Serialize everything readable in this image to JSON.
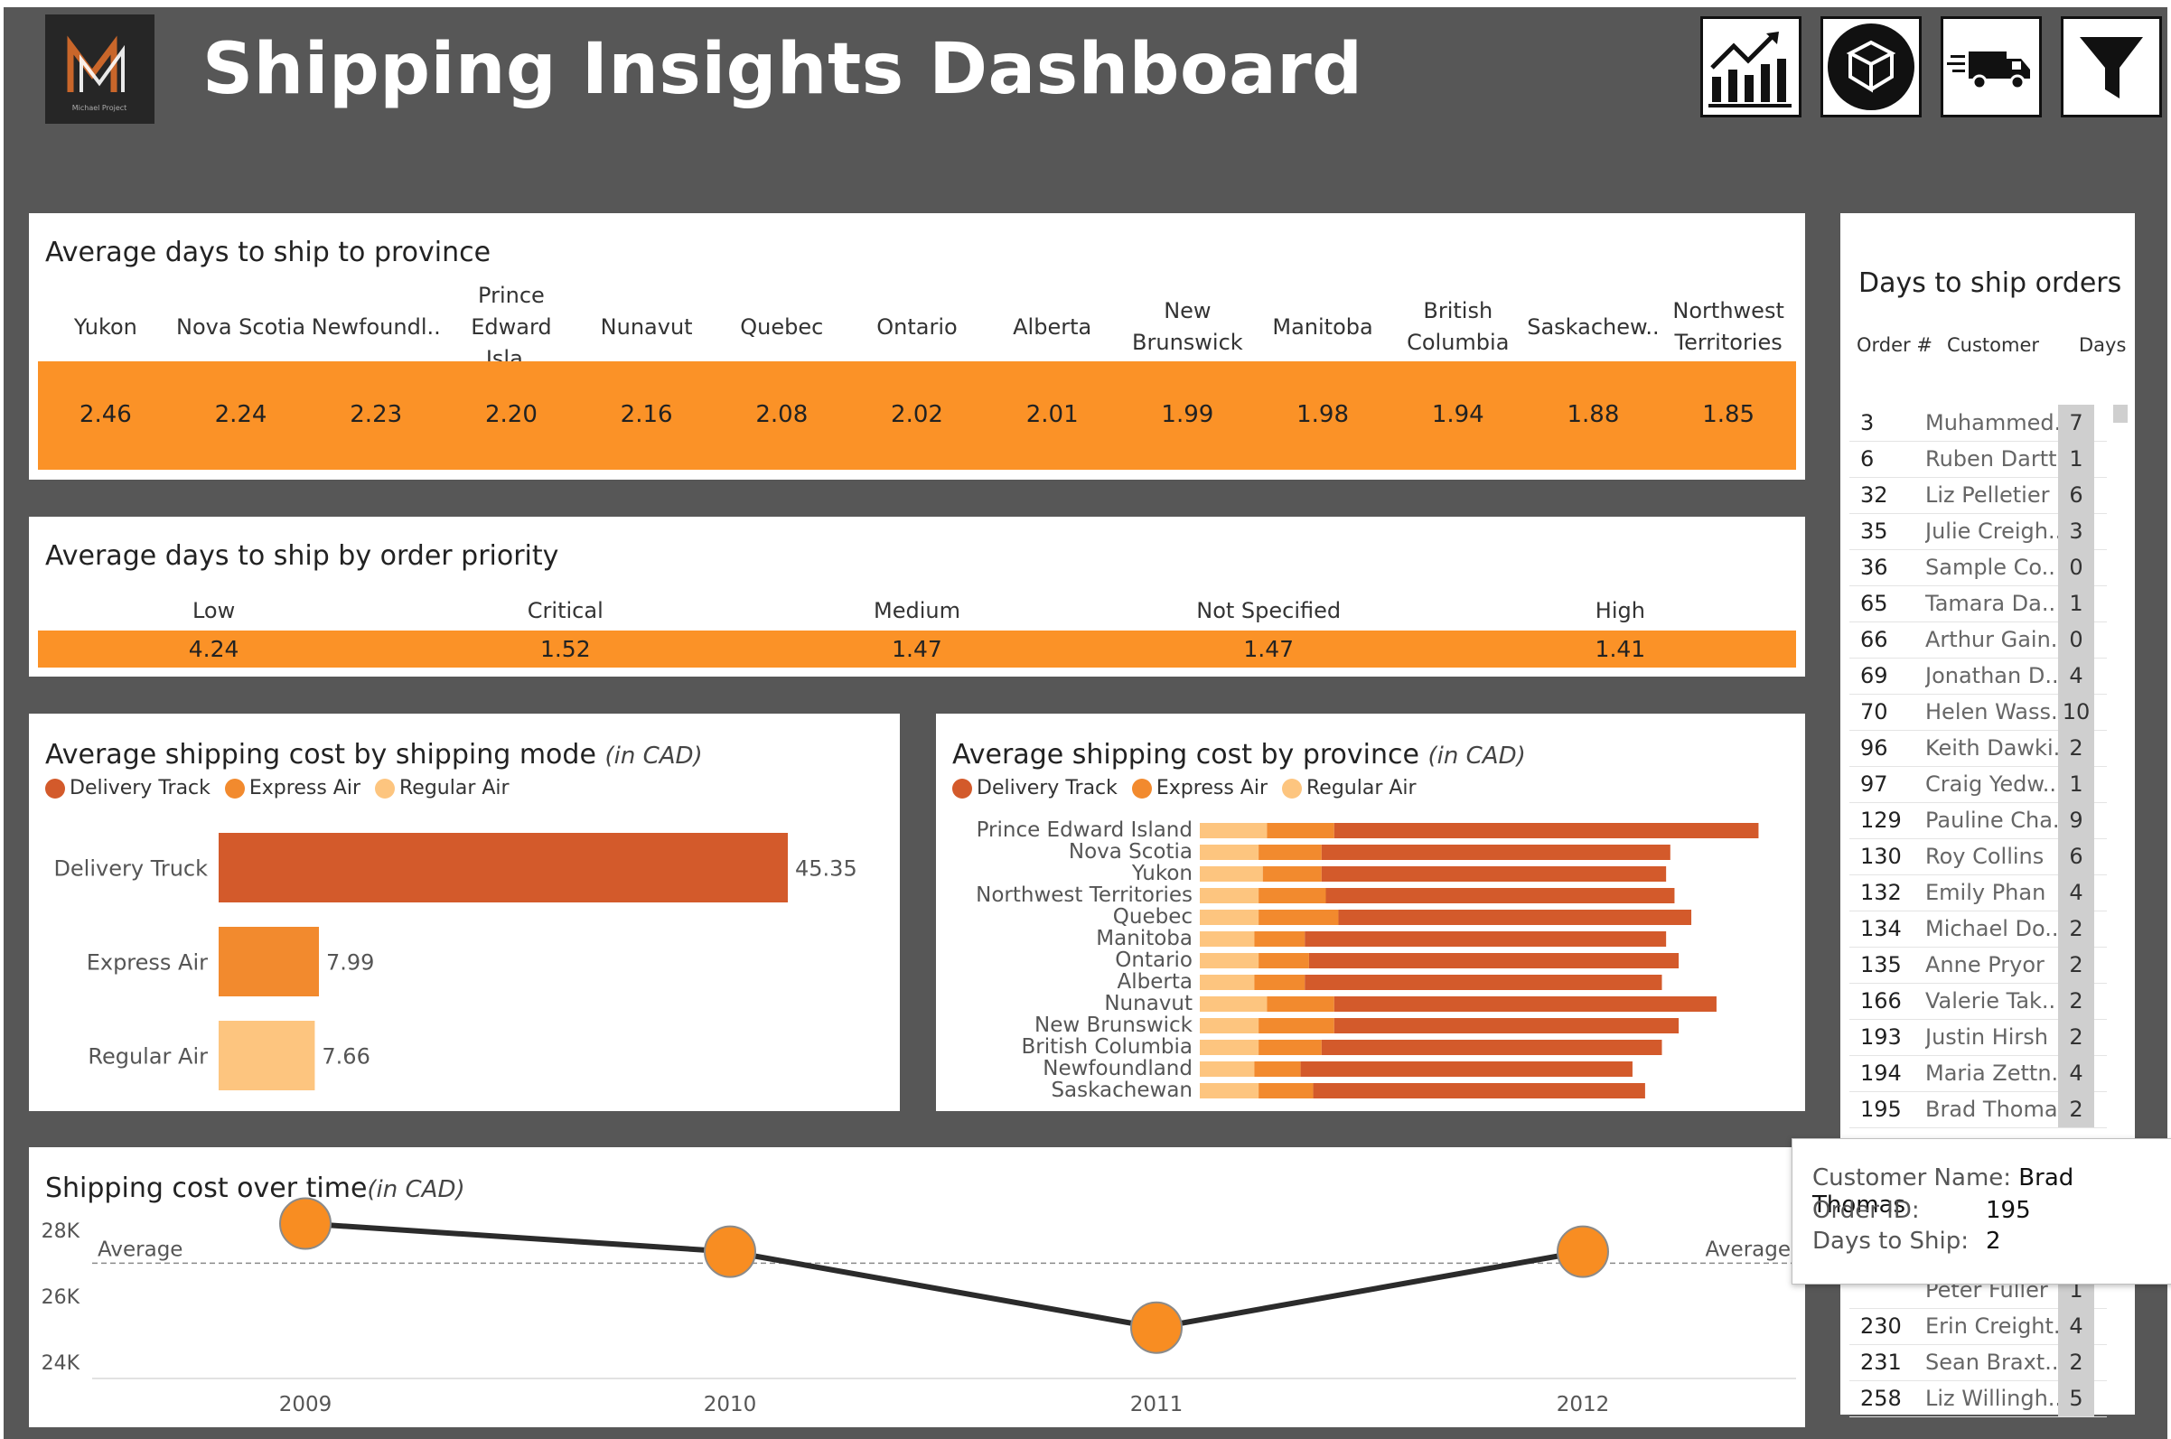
{
  "header": {
    "title": "Shipping Insights Dashboard",
    "logo_caption": "Michael Project",
    "nav_icons": [
      "line-chart-icon",
      "package-icon",
      "delivery-truck-icon",
      "filter-icon"
    ]
  },
  "province_days": {
    "title": "Average days to ship to province",
    "provinces": [
      {
        "line1": "",
        "line2": "Yukon",
        "value": "2.46"
      },
      {
        "line1": "",
        "line2": "Nova Scotia",
        "value": "2.24"
      },
      {
        "line1": "",
        "line2": "Newfoundl..",
        "value": "2.23"
      },
      {
        "line1": "Prince",
        "line2": "Edward Isla..",
        "value": "2.20"
      },
      {
        "line1": "",
        "line2": "Nunavut",
        "value": "2.16"
      },
      {
        "line1": "",
        "line2": "Quebec",
        "value": "2.08"
      },
      {
        "line1": "",
        "line2": "Ontario",
        "value": "2.02"
      },
      {
        "line1": "",
        "line2": "Alberta",
        "value": "2.01"
      },
      {
        "line1": "New",
        "line2": "Brunswick",
        "value": "1.99"
      },
      {
        "line1": "",
        "line2": "Manitoba",
        "value": "1.98"
      },
      {
        "line1": "British",
        "line2": "Columbia",
        "value": "1.94"
      },
      {
        "line1": "",
        "line2": "Saskachew..",
        "value": "1.88"
      },
      {
        "line1": "Northwest",
        "line2": "Territories",
        "value": "1.85"
      }
    ]
  },
  "priority_days": {
    "title": "Average days to ship by order priority",
    "priorities": [
      {
        "label": "Low",
        "value": "4.24"
      },
      {
        "label": "Critical",
        "value": "1.52"
      },
      {
        "label": "Medium",
        "value": "1.47"
      },
      {
        "label": "Not Specified",
        "value": "1.47"
      },
      {
        "label": "High",
        "value": "1.41"
      }
    ]
  },
  "legend": [
    {
      "label": "Delivery Track",
      "color": "#d35a2b"
    },
    {
      "label": "Express Air",
      "color": "#f28a2e"
    },
    {
      "label": "Regular Air",
      "color": "#fdc57f"
    }
  ],
  "mode_cost": {
    "title": "Average shipping cost by shipping mode",
    "unit": "(in CAD)"
  },
  "province_cost": {
    "title": "Average shipping cost by province",
    "unit": "(in CAD)"
  },
  "time_cost": {
    "title": "Shipping cost over time",
    "unit": "(in CAD)",
    "average_label": "Average"
  },
  "orders": {
    "title": "Days to ship orders",
    "col_order": "Order #",
    "col_customer": "Customer",
    "col_days": "Days",
    "rows": [
      {
        "order": "3",
        "customer": "Muhammed..",
        "days": "7"
      },
      {
        "order": "6",
        "customer": "Ruben Dartt",
        "days": "1"
      },
      {
        "order": "32",
        "customer": "Liz Pelletier",
        "days": "6"
      },
      {
        "order": "35",
        "customer": "Julie Creigh..",
        "days": "3"
      },
      {
        "order": "36",
        "customer": "Sample Co..",
        "days": "0"
      },
      {
        "order": "65",
        "customer": "Tamara Da..",
        "days": "1"
      },
      {
        "order": "66",
        "customer": "Arthur Gain..",
        "days": "0"
      },
      {
        "order": "69",
        "customer": "Jonathan D..",
        "days": "4"
      },
      {
        "order": "70",
        "customer": "Helen Wass..",
        "days": "10"
      },
      {
        "order": "96",
        "customer": "Keith Dawki..",
        "days": "2"
      },
      {
        "order": "97",
        "customer": "Craig Yedw..",
        "days": "1"
      },
      {
        "order": "129",
        "customer": "Pauline Cha..",
        "days": "9"
      },
      {
        "order": "130",
        "customer": "Roy Collins",
        "days": "6"
      },
      {
        "order": "132",
        "customer": "Emily Phan",
        "days": "4"
      },
      {
        "order": "134",
        "customer": "Michael Do..",
        "days": "2"
      },
      {
        "order": "135",
        "customer": "Anne Pryor",
        "days": "2"
      },
      {
        "order": "166",
        "customer": "Valerie Tak..",
        "days": "2"
      },
      {
        "order": "193",
        "customer": "Justin Hirsh",
        "days": "2"
      },
      {
        "order": "194",
        "customer": "Maria Zettn..",
        "days": "4"
      },
      {
        "order": "195",
        "customer": "Brad Thomas",
        "days": "2"
      }
    ],
    "rows_below": [
      {
        "order": "",
        "customer": "Peter Fuller",
        "days": "1"
      },
      {
        "order": "230",
        "customer": "Erin Creight..",
        "days": "4"
      },
      {
        "order": "231",
        "customer": "Sean Braxt..",
        "days": "2"
      },
      {
        "order": "258",
        "customer": "Liz Willingh..",
        "days": "5"
      }
    ]
  },
  "tooltip": {
    "name_label": "Customer Name:",
    "name_value": "Brad Thomas",
    "id_label": "Order ID:",
    "id_value": "195",
    "days_label": "Days to Ship:",
    "days_value": "2"
  },
  "chart_data": [
    {
      "type": "bar",
      "title": "Average shipping cost by shipping mode",
      "orientation": "horizontal",
      "categories": [
        "Delivery Truck",
        "Express Air",
        "Regular Air"
      ],
      "values": [
        45.35,
        7.99,
        7.66
      ],
      "value_labels": [
        "45.35",
        "7.99",
        "7.66"
      ],
      "colors": [
        "#d35a2b",
        "#f28a2e",
        "#fdc57f"
      ]
    },
    {
      "type": "bar",
      "title": "Average shipping cost by province",
      "orientation": "horizontal",
      "stacked": true,
      "categories": [
        "Prince Edward Island",
        "Nova Scotia",
        "Yukon",
        "Northwest Territories",
        "Quebec",
        "Manitoba",
        "Ontario",
        "Alberta",
        "Nunavut",
        "New Brunswick",
        "British Columbia",
        "Newfoundland",
        "Saskachewan"
      ],
      "series": [
        {
          "name": "Regular Air",
          "color": "#fdc57f",
          "values": [
            8.0,
            7.0,
            7.5,
            7.0,
            7.0,
            6.5,
            7.0,
            6.5,
            8.0,
            7.0,
            7.0,
            6.5,
            7.0
          ]
        },
        {
          "name": "Express Air",
          "color": "#f28a2e",
          "values": [
            8.0,
            7.5,
            7.0,
            8.0,
            9.5,
            6.0,
            6.0,
            6.0,
            8.0,
            9.0,
            7.5,
            5.5,
            6.5
          ]
        },
        {
          "name": "Delivery Track",
          "color": "#d35a2b",
          "values": [
            50.5,
            41.5,
            41.0,
            41.5,
            42.0,
            43.0,
            44.0,
            42.5,
            45.5,
            41.0,
            40.5,
            39.5,
            39.5
          ]
        }
      ]
    },
    {
      "type": "line",
      "title": "Shipping cost over time",
      "x": [
        "2009",
        "2010",
        "2011",
        "2012"
      ],
      "y": [
        28200,
        27350,
        25050,
        27350
      ],
      "average": 27000,
      "yticks": [
        24000,
        26000,
        28000
      ],
      "ytick_labels": [
        "24K",
        "26K",
        "28K"
      ],
      "ylim": [
        23400,
        29200
      ]
    }
  ]
}
